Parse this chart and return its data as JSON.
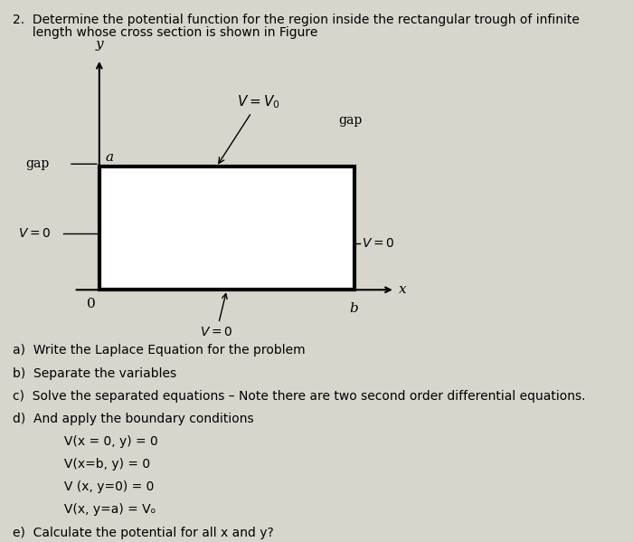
{
  "background_color": "#d8d5cc",
  "title_line1": "2.  Determine the potential function for the region inside the rectangular trough of infinite",
  "title_line2": "     length whose cross section is shown in Figure",
  "items_a": "a)  Write the Laplace Equation for the problem",
  "items_b": "b)  Separate the variables",
  "items_c": "c)  Solve the separated equations – Note there are two second order differential equations.",
  "items_d": "d)  And apply the boundary conditions",
  "bc1": "     V(x = 0, y) = 0",
  "bc2": "     V(x=b, y) = 0",
  "bc3": "     V (x, y=0) = 0",
  "bc4": "     V(x, y=a) = Vₒ",
  "items_e": "e)  Calculate the potential for all x and y?"
}
